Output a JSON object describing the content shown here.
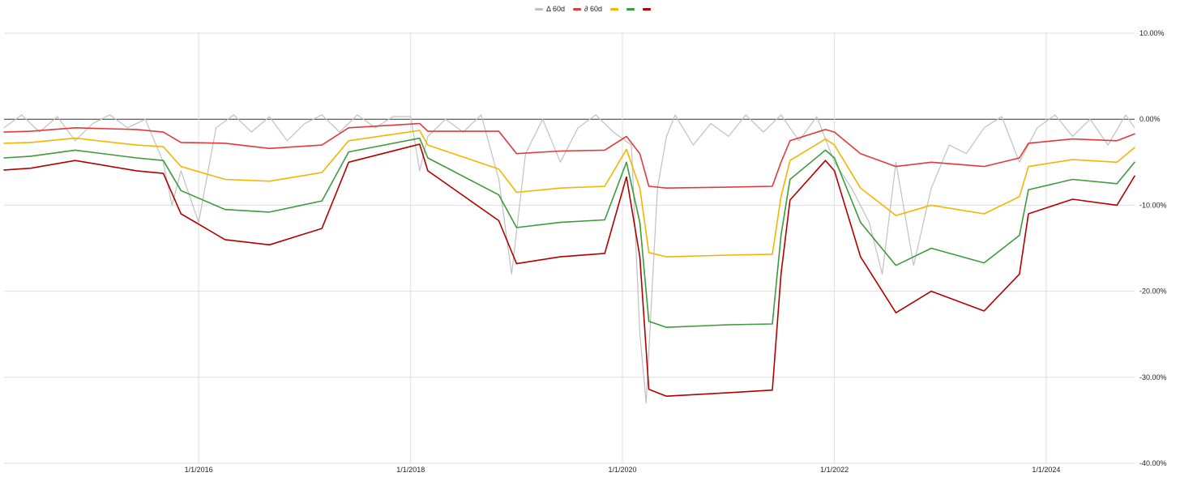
{
  "chart_data": {
    "type": "line",
    "title": "",
    "xlabel": "",
    "ylabel": "",
    "x_range": [
      "2014-03-01",
      "2024-11-01"
    ],
    "ylim": [
      -40,
      10
    ],
    "y_unit": "%",
    "y_ticks": [
      10,
      0,
      -10,
      -20,
      -30,
      -40
    ],
    "y_tick_labels": [
      "10.00%",
      "0.00%",
      "-10.00%",
      "-20.00%",
      "-30.00%",
      "-40.00%"
    ],
    "x_ticks": [
      "2016-01-01",
      "2018-01-01",
      "2020-01-01",
      "2022-01-01",
      "2024-01-01"
    ],
    "x_tick_labels": [
      "1/1/2016",
      "1/1/2018",
      "1/1/2020",
      "1/1/2022",
      "1/1/2024"
    ],
    "grid": true,
    "legend_position": "top-center",
    "legend": [
      {
        "label": "Δ 60d",
        "color": "#c0c0c0"
      },
      {
        "label": "∂ 60d",
        "color": "#e03a3a"
      },
      {
        "label": "",
        "color": "#f4b400"
      },
      {
        "label": "",
        "color": "#3d9a3d"
      },
      {
        "label": "",
        "color": "#b00000"
      }
    ],
    "series": [
      {
        "color": "#c0c0c0",
        "points": [
          [
            "2014-03-01",
            -1.0
          ],
          [
            "2014-05-01",
            0.5
          ],
          [
            "2014-07-01",
            -1.5
          ],
          [
            "2014-09-01",
            0.3
          ],
          [
            "2014-11-01",
            -2.5
          ],
          [
            "2015-01-01",
            -0.5
          ],
          [
            "2015-03-01",
            0.5
          ],
          [
            "2015-05-01",
            -1.0
          ],
          [
            "2015-07-01",
            0.0
          ],
          [
            "2015-09-01",
            -5.0
          ],
          [
            "2015-10-01",
            -10.0
          ],
          [
            "2015-11-01",
            -6.0
          ],
          [
            "2016-01-01",
            -12.0
          ],
          [
            "2016-03-01",
            -1.0
          ],
          [
            "2016-05-01",
            0.5
          ],
          [
            "2016-07-01",
            -1.5
          ],
          [
            "2016-09-01",
            0.3
          ],
          [
            "2016-11-01",
            -2.5
          ],
          [
            "2017-01-01",
            -0.5
          ],
          [
            "2017-03-01",
            0.5
          ],
          [
            "2017-05-01",
            -1.5
          ],
          [
            "2017-07-01",
            0.5
          ],
          [
            "2017-09-01",
            -1.0
          ],
          [
            "2017-11-01",
            0.3
          ],
          [
            "2018-01-01",
            0.3
          ],
          [
            "2018-02-01",
            -6.0
          ],
          [
            "2018-03-01",
            -2.0
          ],
          [
            "2018-05-01",
            0.0
          ],
          [
            "2018-07-01",
            -1.5
          ],
          [
            "2018-09-01",
            0.5
          ],
          [
            "2018-11-01",
            -7.0
          ],
          [
            "2018-12-15",
            -18.0
          ],
          [
            "2019-02-01",
            -4.0
          ],
          [
            "2019-04-01",
            0.0
          ],
          [
            "2019-06-01",
            -5.0
          ],
          [
            "2019-08-01",
            -1.0
          ],
          [
            "2019-10-01",
            0.5
          ],
          [
            "2019-12-01",
            -1.5
          ],
          [
            "2020-02-01",
            -3.0
          ],
          [
            "2020-03-01",
            -25.0
          ],
          [
            "2020-03-23",
            -33.0
          ],
          [
            "2020-04-15",
            -18.0
          ],
          [
            "2020-05-01",
            -8.0
          ],
          [
            "2020-06-01",
            -2.0
          ],
          [
            "2020-07-01",
            0.5
          ],
          [
            "2020-09-01",
            -3.0
          ],
          [
            "2020-11-01",
            -0.5
          ],
          [
            "2021-01-01",
            -2.0
          ],
          [
            "2021-03-01",
            0.5
          ],
          [
            "2021-05-01",
            -1.5
          ],
          [
            "2021-07-01",
            0.5
          ],
          [
            "2021-09-01",
            -2.5
          ],
          [
            "2021-11-01",
            0.3
          ],
          [
            "2022-01-01",
            -5.0
          ],
          [
            "2022-03-01",
            -8.0
          ],
          [
            "2022-05-01",
            -12.0
          ],
          [
            "2022-06-15",
            -18.0
          ],
          [
            "2022-08-01",
            -5.0
          ],
          [
            "2022-10-01",
            -17.0
          ],
          [
            "2022-12-01",
            -8.0
          ],
          [
            "2023-02-01",
            -3.0
          ],
          [
            "2023-04-01",
            -4.0
          ],
          [
            "2023-06-01",
            -1.0
          ],
          [
            "2023-08-01",
            0.3
          ],
          [
            "2023-10-01",
            -5.0
          ],
          [
            "2023-12-01",
            -1.0
          ],
          [
            "2024-02-01",
            0.5
          ],
          [
            "2024-04-01",
            -2.0
          ],
          [
            "2024-06-01",
            0.0
          ],
          [
            "2024-08-01",
            -3.0
          ],
          [
            "2024-10-01",
            0.5
          ],
          [
            "2024-11-01",
            -1.0
          ]
        ]
      },
      {
        "color": "#e03a3a",
        "points": [
          [
            "2014-03-01",
            -1.5
          ],
          [
            "2014-06-01",
            -1.4
          ],
          [
            "2014-11-01",
            -1.0
          ],
          [
            "2015-06-01",
            -1.2
          ],
          [
            "2015-09-01",
            -1.5
          ],
          [
            "2015-11-01",
            -2.7
          ],
          [
            "2016-04-01",
            -2.8
          ],
          [
            "2016-09-01",
            -3.4
          ],
          [
            "2017-03-01",
            -3.0
          ],
          [
            "2017-06-01",
            -1.0
          ],
          [
            "2018-02-01",
            -0.5
          ],
          [
            "2018-03-01",
            -1.4
          ],
          [
            "2018-11-01",
            -1.4
          ],
          [
            "2019-01-01",
            -4.0
          ],
          [
            "2019-06-01",
            -3.7
          ],
          [
            "2019-11-01",
            -3.6
          ],
          [
            "2020-01-15",
            -2.0
          ],
          [
            "2020-03-01",
            -4.0
          ],
          [
            "2020-04-01",
            -7.8
          ],
          [
            "2020-06-01",
            -8.0
          ],
          [
            "2021-01-01",
            -7.9
          ],
          [
            "2021-06-01",
            -7.8
          ],
          [
            "2021-07-01",
            -5.0
          ],
          [
            "2021-08-01",
            -2.5
          ],
          [
            "2021-12-01",
            -1.2
          ],
          [
            "2022-01-01",
            -1.5
          ],
          [
            "2022-04-01",
            -4.0
          ],
          [
            "2022-08-01",
            -5.5
          ],
          [
            "2022-12-01",
            -5.0
          ],
          [
            "2023-06-01",
            -5.5
          ],
          [
            "2023-10-01",
            -4.5
          ],
          [
            "2023-11-01",
            -2.8
          ],
          [
            "2024-04-01",
            -2.3
          ],
          [
            "2024-09-01",
            -2.5
          ],
          [
            "2024-11-01",
            -1.7
          ]
        ]
      },
      {
        "color": "#f4b400",
        "points": [
          [
            "2014-03-01",
            -2.8
          ],
          [
            "2014-06-01",
            -2.7
          ],
          [
            "2014-11-01",
            -2.2
          ],
          [
            "2015-06-01",
            -3.0
          ],
          [
            "2015-09-01",
            -3.2
          ],
          [
            "2015-11-01",
            -5.5
          ],
          [
            "2016-04-01",
            -7.0
          ],
          [
            "2016-09-01",
            -7.2
          ],
          [
            "2017-03-01",
            -6.2
          ],
          [
            "2017-06-01",
            -2.5
          ],
          [
            "2018-02-01",
            -1.3
          ],
          [
            "2018-03-01",
            -3.0
          ],
          [
            "2018-11-01",
            -5.8
          ],
          [
            "2019-01-01",
            -8.5
          ],
          [
            "2019-06-01",
            -8.0
          ],
          [
            "2019-11-01",
            -7.8
          ],
          [
            "2020-01-15",
            -3.5
          ],
          [
            "2020-03-01",
            -8.0
          ],
          [
            "2020-04-01",
            -15.5
          ],
          [
            "2020-06-01",
            -16.0
          ],
          [
            "2021-01-01",
            -15.8
          ],
          [
            "2021-06-01",
            -15.7
          ],
          [
            "2021-07-01",
            -9.0
          ],
          [
            "2021-08-01",
            -4.8
          ],
          [
            "2021-12-01",
            -2.3
          ],
          [
            "2022-01-01",
            -3.0
          ],
          [
            "2022-04-01",
            -8.0
          ],
          [
            "2022-08-01",
            -11.2
          ],
          [
            "2022-12-01",
            -10.0
          ],
          [
            "2023-06-01",
            -11.0
          ],
          [
            "2023-10-01",
            -9.0
          ],
          [
            "2023-11-01",
            -5.5
          ],
          [
            "2024-04-01",
            -4.7
          ],
          [
            "2024-09-01",
            -5.0
          ],
          [
            "2024-11-01",
            -3.3
          ]
        ]
      },
      {
        "color": "#3d9a3d",
        "points": [
          [
            "2014-03-01",
            -4.5
          ],
          [
            "2014-06-01",
            -4.3
          ],
          [
            "2014-11-01",
            -3.6
          ],
          [
            "2015-06-01",
            -4.5
          ],
          [
            "2015-09-01",
            -4.8
          ],
          [
            "2015-11-01",
            -8.3
          ],
          [
            "2016-04-01",
            -10.5
          ],
          [
            "2016-09-01",
            -10.8
          ],
          [
            "2017-03-01",
            -9.5
          ],
          [
            "2017-06-01",
            -3.8
          ],
          [
            "2018-02-01",
            -2.2
          ],
          [
            "2018-03-01",
            -4.5
          ],
          [
            "2018-11-01",
            -8.8
          ],
          [
            "2019-01-01",
            -12.6
          ],
          [
            "2019-06-01",
            -12.0
          ],
          [
            "2019-11-01",
            -11.7
          ],
          [
            "2020-01-15",
            -5.0
          ],
          [
            "2020-03-01",
            -12.0
          ],
          [
            "2020-04-01",
            -23.5
          ],
          [
            "2020-06-01",
            -24.2
          ],
          [
            "2021-01-01",
            -23.9
          ],
          [
            "2021-06-01",
            -23.8
          ],
          [
            "2021-07-01",
            -13.5
          ],
          [
            "2021-08-01",
            -7.0
          ],
          [
            "2021-12-01",
            -3.6
          ],
          [
            "2022-01-01",
            -4.5
          ],
          [
            "2022-04-01",
            -12.0
          ],
          [
            "2022-08-01",
            -17.0
          ],
          [
            "2022-12-01",
            -15.0
          ],
          [
            "2023-06-01",
            -16.7
          ],
          [
            "2023-10-01",
            -13.5
          ],
          [
            "2023-11-01",
            -8.2
          ],
          [
            "2024-04-01",
            -7.0
          ],
          [
            "2024-09-01",
            -7.5
          ],
          [
            "2024-11-01",
            -5.0
          ]
        ]
      },
      {
        "color": "#b00000",
        "points": [
          [
            "2014-03-01",
            -5.9
          ],
          [
            "2014-06-01",
            -5.7
          ],
          [
            "2014-11-01",
            -4.8
          ],
          [
            "2015-06-01",
            -6.0
          ],
          [
            "2015-09-01",
            -6.3
          ],
          [
            "2015-11-01",
            -11.0
          ],
          [
            "2016-04-01",
            -14.0
          ],
          [
            "2016-09-01",
            -14.6
          ],
          [
            "2017-03-01",
            -12.7
          ],
          [
            "2017-06-01",
            -5.0
          ],
          [
            "2018-02-01",
            -2.9
          ],
          [
            "2018-03-01",
            -6.0
          ],
          [
            "2018-11-01",
            -11.8
          ],
          [
            "2019-01-01",
            -16.8
          ],
          [
            "2019-06-01",
            -16.0
          ],
          [
            "2019-11-01",
            -15.6
          ],
          [
            "2020-01-15",
            -6.7
          ],
          [
            "2020-03-01",
            -16.0
          ],
          [
            "2020-04-01",
            -31.4
          ],
          [
            "2020-06-01",
            -32.2
          ],
          [
            "2021-01-01",
            -31.8
          ],
          [
            "2021-06-01",
            -31.5
          ],
          [
            "2021-07-01",
            -18.0
          ],
          [
            "2021-08-01",
            -9.4
          ],
          [
            "2021-12-01",
            -4.8
          ],
          [
            "2022-01-01",
            -6.0
          ],
          [
            "2022-04-01",
            -16.0
          ],
          [
            "2022-08-01",
            -22.5
          ],
          [
            "2022-12-01",
            -20.0
          ],
          [
            "2023-06-01",
            -22.3
          ],
          [
            "2023-10-01",
            -18.0
          ],
          [
            "2023-11-01",
            -11.0
          ],
          [
            "2024-04-01",
            -9.3
          ],
          [
            "2024-09-01",
            -10.0
          ],
          [
            "2024-11-01",
            -6.6
          ]
        ]
      }
    ]
  }
}
